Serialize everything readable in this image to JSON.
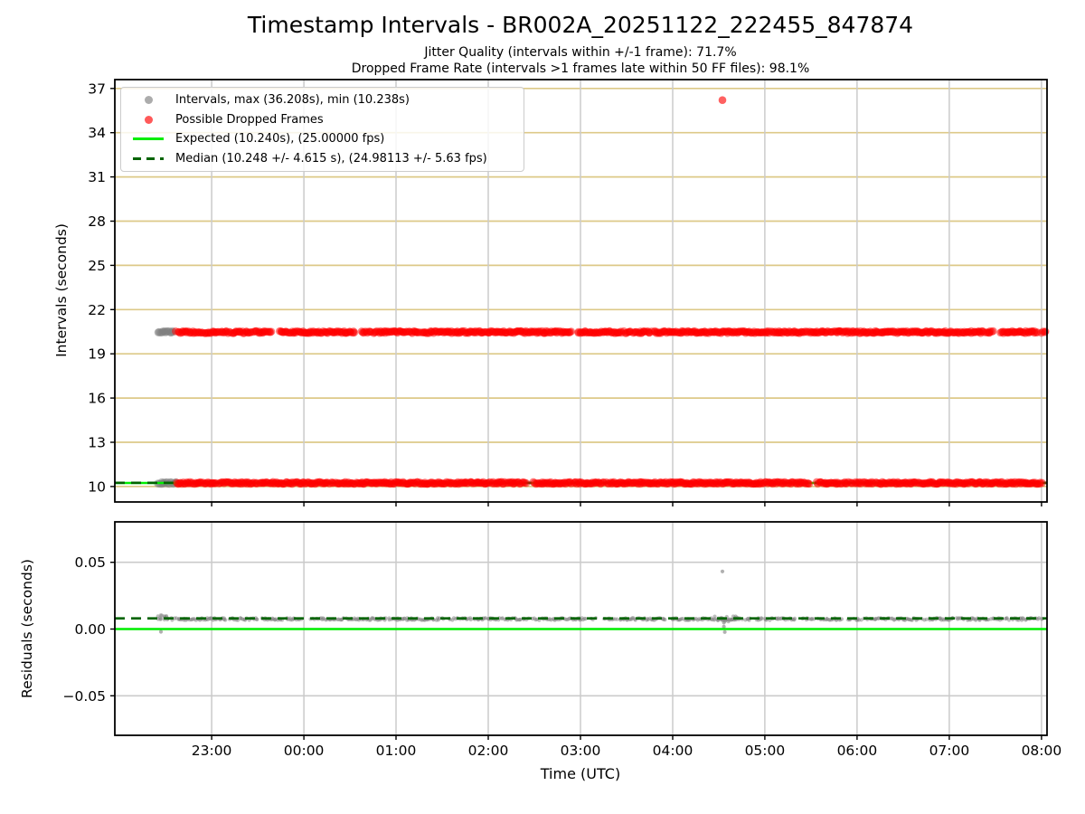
{
  "chart_data": {
    "type": "scatter",
    "title": "Timestamp Intervals - BR002A_20251122_222455_847874",
    "subtitle_lines": [
      "Jitter Quality (intervals within +/-1 frame): 71.7%",
      "Dropped Frame Rate (intervals >1 frames late within 50 FF files): 98.1%"
    ],
    "x_axis": {
      "label": "Time (UTC)",
      "ref_time": "22:00",
      "tick_hours": [
        1,
        2,
        3,
        4,
        5,
        6,
        7,
        8,
        9,
        10
      ],
      "tick_labels": [
        "23:00",
        "00:00",
        "01:00",
        "02:00",
        "03:00",
        "04:00",
        "05:00",
        "06:00",
        "07:00",
        "08:00"
      ],
      "xlim_hours": [
        -0.05,
        10.06
      ],
      "data_start_hours": 0.42
    },
    "subplots": [
      {
        "name": "intervals",
        "ylabel": "Intervals (seconds)",
        "yticks": [
          37,
          34,
          31,
          28,
          25,
          22,
          19,
          16,
          13,
          10
        ],
        "ylim": [
          8.95,
          37.6
        ],
        "grid_h_color": "#ddc988",
        "grid_v_color": "#cbcbcb",
        "series": [
          {
            "name": "intervals-normal",
            "z": 0,
            "color": "#7f7f7f",
            "alpha": 0.5,
            "r": 4.3,
            "skip": 0,
            "bands": [
              {
                "y": 20.47,
                "from": 0.42,
                "to": 0.6,
                "jitter": 0.07
              },
              {
                "y": 10.24,
                "from": 0.42,
                "to": 0.62,
                "jitter": 0.07
              }
            ],
            "points": []
          },
          {
            "name": "possible-dropped-frames",
            "z": 1,
            "color": "#ff0000",
            "alpha": 0.5,
            "r": 4.3,
            "skip": 0.02,
            "bands": [
              {
                "y": 20.47,
                "from": 0.6,
                "to": 10.05,
                "jitter": 0.07,
                "gaps": [
                  [
                    9.48,
                    9.545
                  ]
                ]
              },
              {
                "y": 10.24,
                "from": 0.62,
                "to": 10.05,
                "jitter": 0.07
              }
            ],
            "points": [
              [
                6.54,
                36.208
              ]
            ]
          }
        ],
        "lines": [
          {
            "name": "expected-line",
            "y": 10.24,
            "color": "#00ee00",
            "dash": null,
            "width": 2.6
          },
          {
            "name": "median-line",
            "y": 10.248,
            "color": "#006400",
            "dash": [
              11,
              7
            ],
            "width": 2.6
          }
        ],
        "stats": {
          "max_s": 36.208,
          "min_s": 10.238,
          "expected_s": 10.24,
          "expected_fps": 25.0,
          "median_s": 10.248,
          "median_pm_s": 4.615,
          "median_fps": 24.98113,
          "median_pm_fps": 5.63,
          "jitter_quality_pct": 71.7,
          "dropped_frame_rate_pct": 98.1,
          "ff_files": 50
        }
      },
      {
        "name": "residuals",
        "ylabel": "Residuals (seconds)",
        "yticks": [
          0.05,
          0.0,
          -0.05
        ],
        "ytick_labels": [
          "0.05",
          "0.00",
          "−0.05"
        ],
        "ylim": [
          -0.0796,
          0.0803
        ],
        "grid_h_color": "#cbcbcb",
        "grid_v_color": "#cbcbcb",
        "series": [
          {
            "name": "residuals-dots",
            "z": 0,
            "color": "#7f7f7f",
            "alpha": 0.5,
            "r": 2.1,
            "skip": 0.18,
            "bands": [
              {
                "y": 0.0075,
                "from": 0.42,
                "to": 10.05,
                "jitter": 0.0008
              },
              {
                "y": 0.0095,
                "from": 0.42,
                "to": 0.52,
                "jitter": 0.0012
              },
              {
                "y": 0.0075,
                "from": 6.45,
                "to": 6.7,
                "jitter": 0.002
              }
            ],
            "points": [
              [
                6.54,
                0.0432
              ],
              [
                6.555,
                0.0048
              ],
              [
                6.555,
                0.0018
              ],
              [
                6.565,
                -0.0022
              ],
              [
                0.45,
                -0.002
              ]
            ]
          }
        ],
        "lines": [
          {
            "name": "expected-line",
            "y": 0.0,
            "color": "#00ee00",
            "dash": null,
            "width": 2.6
          },
          {
            "name": "median-line",
            "y": 0.008,
            "color": "#006400",
            "dash": [
              11,
              7
            ],
            "width": 2.6
          }
        ]
      }
    ],
    "legend": [
      {
        "marker": "dot",
        "color": "#7f7f7f",
        "label": "Intervals, max (36.208s), min (10.238s)"
      },
      {
        "marker": "dot",
        "color": "#ff0000",
        "label": "Possible Dropped Frames"
      },
      {
        "marker": "solid-line",
        "color": "#00ee00",
        "label": "Expected (10.240s), (25.00000 fps)"
      },
      {
        "marker": "dashed-line",
        "color": "#006400",
        "label": "Median (10.248 +/- 4.615 s), (24.98113 +/- 5.63 fps)"
      }
    ]
  }
}
